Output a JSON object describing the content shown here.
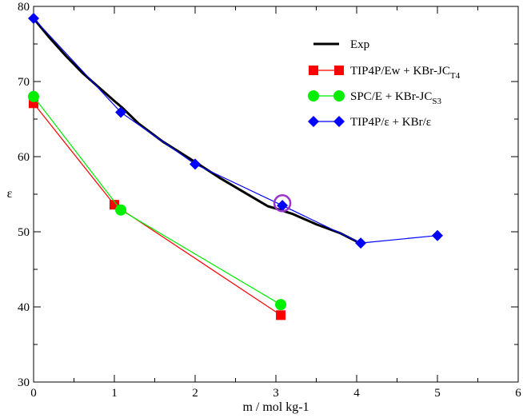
{
  "chart_data": {
    "type": "line",
    "title": "",
    "xlabel": "m / mol kg-1",
    "ylabel": "ε",
    "xlim": [
      0,
      6
    ],
    "ylim": [
      30,
      80
    ],
    "xticks": [
      0,
      1,
      2,
      3,
      4,
      5,
      6
    ],
    "yticks": [
      30,
      40,
      50,
      60,
      70,
      80
    ],
    "x_tick_labels": [
      "0",
      "1",
      "2",
      "3",
      "4",
      "5",
      "6"
    ],
    "y_tick_labels": [
      "30",
      "40",
      "50",
      "60",
      "70",
      "80"
    ],
    "legend_position": "top-right",
    "series": [
      {
        "name": "Exp",
        "legend_main": "Exp",
        "legend_sub": "",
        "color": "#000000",
        "marker": "none",
        "x": [
          0,
          0.2,
          0.4,
          0.6,
          0.8,
          1.0,
          1.1,
          1.3,
          1.6,
          2.0,
          2.3,
          2.6,
          2.9,
          3.0,
          3.2,
          3.5,
          3.8,
          4.0
        ],
        "y": [
          78.4,
          75.8,
          73.4,
          71.2,
          69.3,
          67.4,
          66.5,
          64.4,
          62.0,
          59.3,
          57.2,
          55.3,
          53.4,
          53.1,
          52.4,
          51.0,
          49.8,
          48.7
        ]
      },
      {
        "name": "TIP4P/Ew + KBr-JC T4",
        "legend_main": "TIP4P/Ew + KBr-JC",
        "legend_sub": "T4",
        "color": "#ff0000",
        "marker": "square",
        "x": [
          0,
          1.0,
          3.06
        ],
        "y": [
          67.1,
          53.6,
          38.9
        ]
      },
      {
        "name": "SPC/E + KBr-JC S3",
        "legend_main": "SPC/E + KBr-JC",
        "legend_sub": "S3",
        "color": "#00ee00",
        "marker": "circle",
        "x": [
          0,
          1.08,
          3.06
        ],
        "y": [
          68.0,
          52.9,
          40.3
        ]
      },
      {
        "name": "TIP4P/ε + KBr/ε",
        "legend_main": "TIP4P/ε + KBr/ε",
        "legend_sub": "",
        "color": "#0000ff",
        "marker": "diamond",
        "x": [
          0,
          1.08,
          2.0,
          3.08,
          4.05,
          5.0
        ],
        "y": [
          78.4,
          65.9,
          59.0,
          53.5,
          48.5,
          49.5
        ]
      }
    ],
    "annotations": [
      {
        "type": "circle-marker",
        "color": "#9933cc",
        "x": 3.08,
        "y": 53.8
      }
    ]
  }
}
